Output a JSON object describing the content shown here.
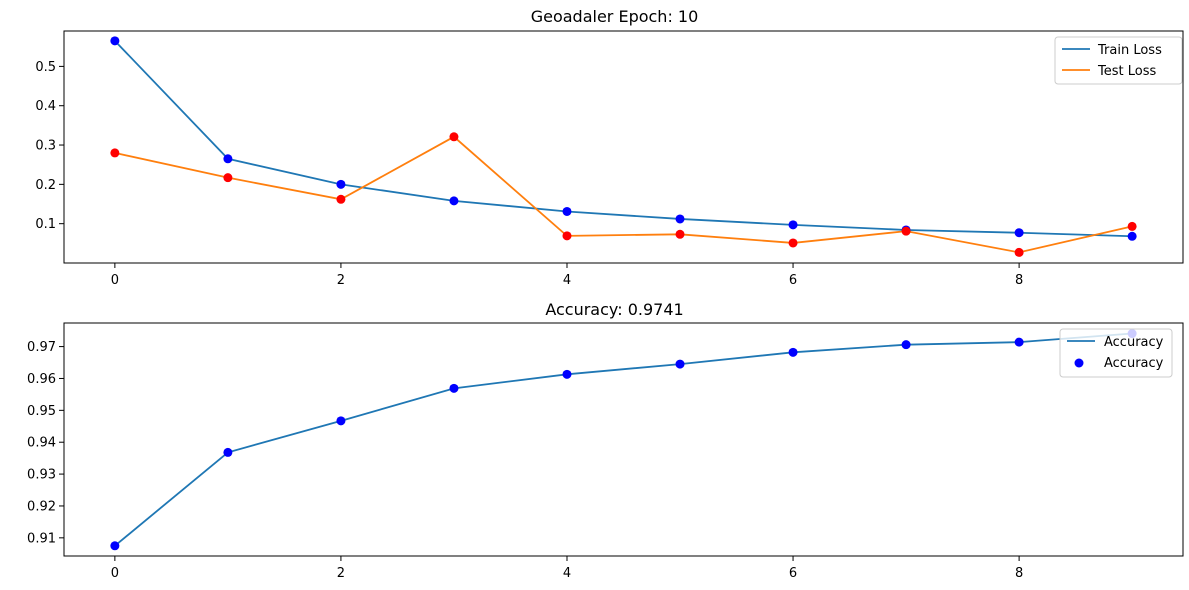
{
  "chart_data": [
    {
      "type": "line",
      "title": "Geoadaler Epoch: 10",
      "xlabel": "",
      "ylabel": "",
      "x": [
        0,
        1,
        2,
        3,
        4,
        5,
        6,
        7,
        8,
        9
      ],
      "xlim": [
        -0.45,
        9.45
      ],
      "ylim": [
        0.0,
        0.59
      ],
      "xticks": [
        "0",
        "2",
        "4",
        "6",
        "8"
      ],
      "yticks": [
        "0.1",
        "0.2",
        "0.3",
        "0.4",
        "0.5"
      ],
      "grid": false,
      "legend_position": "upper right",
      "series": [
        {
          "name": "Train Loss",
          "color": "#1f77b4",
          "marker_color": "#0000ff",
          "values": [
            0.565,
            0.265,
            0.2,
            0.158,
            0.131,
            0.112,
            0.097,
            0.084,
            0.077,
            0.068
          ]
        },
        {
          "name": "Test Loss",
          "color": "#ff7f0e",
          "marker_color": "#ff0000",
          "values": [
            0.28,
            0.217,
            0.162,
            0.321,
            0.069,
            0.073,
            0.051,
            0.081,
            0.027,
            0.093
          ]
        }
      ]
    },
    {
      "type": "line",
      "title": "Accuracy: 0.9741",
      "xlabel": "",
      "ylabel": "",
      "x": [
        0,
        1,
        2,
        3,
        4,
        5,
        6,
        7,
        8,
        9
      ],
      "xlim": [
        -0.45,
        9.45
      ],
      "ylim": [
        0.9043,
        0.9774
      ],
      "xticks": [
        "0",
        "2",
        "4",
        "6",
        "8"
      ],
      "yticks": [
        "0.91",
        "0.92",
        "0.93",
        "0.94",
        "0.95",
        "0.96",
        "0.97"
      ],
      "grid": false,
      "legend_position": "upper right",
      "series": [
        {
          "name": "Accuracy",
          "color": "#1f77b4",
          "marker_color": "#0000ff",
          "values": [
            0.9075,
            0.9368,
            0.9467,
            0.9569,
            0.9613,
            0.9645,
            0.9682,
            0.9706,
            0.9714,
            0.9741
          ]
        }
      ],
      "legend_entries": [
        {
          "label": "Accuracy",
          "kind": "line",
          "color": "#1f77b4"
        },
        {
          "label": "Accuracy",
          "kind": "marker",
          "color": "#0000ff"
        }
      ]
    }
  ]
}
